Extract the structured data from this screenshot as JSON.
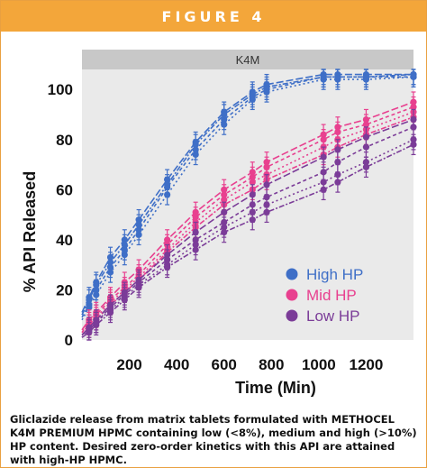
{
  "figure": {
    "label": "FIGURE 4",
    "caption": "Gliclazide release from matrix tablets formulated with METHOCEL K4M PREMIUM HPMC containing low (<8%), medium and high (>10%) HP content. Desired zero-order kinetics with this API are attained with high-HP HPMC."
  },
  "colors": {
    "header": "#f3a63a",
    "panel_strip": "#c8c8c8",
    "plot_bg": "#eaeaea",
    "high_hp": "#3f6fc7",
    "mid_hp": "#e8408f",
    "low_hp": "#7b3c98"
  },
  "chart_data": {
    "type": "line",
    "panel_label": "K4M",
    "xlabel": "Time (Min)",
    "ylabel": "% API Released",
    "xlim": [
      0,
      1400
    ],
    "ylim": [
      0,
      108
    ],
    "xticks": [
      "200",
      "400",
      "600",
      "800",
      "1000",
      "1200"
    ],
    "xtick_values": [
      200,
      400,
      600,
      800,
      1000,
      1200
    ],
    "yticks": [
      "0",
      "20",
      "40",
      "60",
      "80",
      "100"
    ],
    "ytick_values": [
      0,
      20,
      40,
      60,
      80,
      100
    ],
    "grid": false,
    "legend_position": "bottom-right",
    "legend": [
      {
        "label": "High HP",
        "color_key": "high_hp"
      },
      {
        "label": "Mid HP",
        "color_key": "mid_hp"
      },
      {
        "label": "Low HP",
        "color_key": "low_hp"
      }
    ],
    "x": [
      0,
      30,
      60,
      120,
      180,
      240,
      360,
      480,
      600,
      720,
      780,
      1020,
      1080,
      1200,
      1400
    ],
    "series": [
      {
        "group": "high_hp",
        "values": [
          11,
          17,
          23,
          33,
          40,
          48,
          64,
          79,
          91,
          99,
          102,
          106,
          106,
          106,
          106
        ],
        "err": 4
      },
      {
        "group": "high_hp",
        "values": [
          9,
          14,
          20,
          29,
          36,
          44,
          61,
          76,
          88,
          97,
          100,
          105,
          105,
          105,
          105
        ],
        "err": 4
      },
      {
        "group": "high_hp",
        "values": [
          8,
          13,
          18,
          27,
          34,
          42,
          58,
          74,
          86,
          96,
          99,
          104,
          104,
          104,
          105
        ],
        "err": 4
      },
      {
        "group": "high_hp",
        "values": [
          10,
          16,
          22,
          31,
          38,
          46,
          62,
          78,
          90,
          98,
          101,
          105,
          105,
          105,
          106
        ],
        "err": 4
      },
      {
        "group": "mid_hp",
        "values": [
          4,
          8,
          11,
          17,
          23,
          28,
          40,
          51,
          60,
          67,
          71,
          82,
          85,
          88,
          95
        ],
        "err": 4
      },
      {
        "group": "mid_hp",
        "values": [
          3,
          7,
          10,
          16,
          21,
          26,
          38,
          49,
          58,
          65,
          69,
          80,
          83,
          86,
          93
        ],
        "err": 4
      },
      {
        "group": "mid_hp",
        "values": [
          3,
          6,
          9,
          15,
          20,
          25,
          36,
          47,
          56,
          63,
          66,
          77,
          80,
          84,
          91
        ],
        "err": 4
      },
      {
        "group": "mid_hp",
        "values": [
          2,
          5,
          8,
          14,
          19,
          24,
          35,
          45,
          54,
          60,
          64,
          74,
          77,
          82,
          89
        ],
        "err": 4
      },
      {
        "group": "low_hp",
        "values": [
          2,
          5,
          8,
          14,
          19,
          24,
          34,
          43,
          51,
          58,
          62,
          73,
          76,
          81,
          88
        ],
        "err": 4
      },
      {
        "group": "low_hp",
        "values": [
          2,
          4,
          7,
          13,
          18,
          23,
          32,
          40,
          47,
          54,
          57,
          67,
          71,
          77,
          85
        ],
        "err": 4
      },
      {
        "group": "low_hp",
        "values": [
          1,
          4,
          7,
          12,
          17,
          22,
          30,
          38,
          45,
          51,
          54,
          63,
          66,
          71,
          80
        ],
        "err": 4
      },
      {
        "group": "low_hp",
        "values": [
          1,
          3,
          6,
          11,
          16,
          21,
          29,
          36,
          43,
          48,
          51,
          60,
          63,
          69,
          78
        ],
        "err": 4
      }
    ]
  }
}
